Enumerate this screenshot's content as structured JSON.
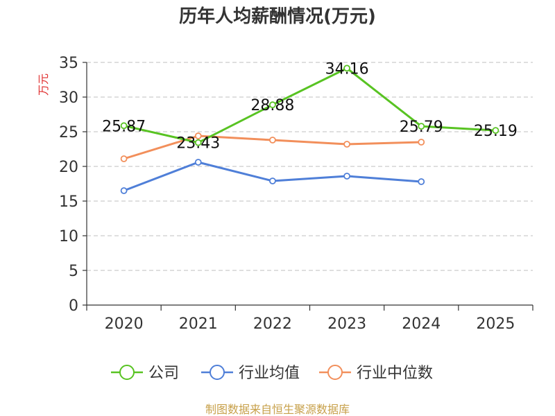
{
  "chart_data": {
    "type": "line",
    "title": "历年人均薪酬情况(万元)",
    "ylabel": "万元",
    "xlabel": "",
    "categories": [
      "2020",
      "2021",
      "2022",
      "2023",
      "2024",
      "2025"
    ],
    "ylim": [
      0,
      35
    ],
    "yticks": [
      "0",
      "5",
      "10",
      "15",
      "20",
      "25",
      "30",
      "35"
    ],
    "grid": true,
    "legend_position": "bottom-center",
    "series": [
      {
        "name": "公司",
        "color": "#58c322",
        "values": [
          25.87,
          23.43,
          28.88,
          34.16,
          25.79,
          25.19
        ],
        "labels": [
          "25.87",
          "23.43",
          "28.88",
          "34.16",
          "25.79",
          "25.19"
        ]
      },
      {
        "name": "行业均值",
        "color": "#4f7fd8",
        "values": [
          16.5,
          20.6,
          17.9,
          18.6,
          17.8,
          null
        ],
        "labels": []
      },
      {
        "name": "行业中位数",
        "color": "#f28f5b",
        "values": [
          21.1,
          24.4,
          23.8,
          23.2,
          23.5,
          null
        ],
        "labels": []
      }
    ]
  },
  "source_note": "制图数据来自恒生聚源数据库",
  "colors": {
    "axis": "#333333",
    "grid": "#cccccc",
    "ylabel": "#e03030",
    "source": "#c7a04a",
    "title": "#333333"
  }
}
